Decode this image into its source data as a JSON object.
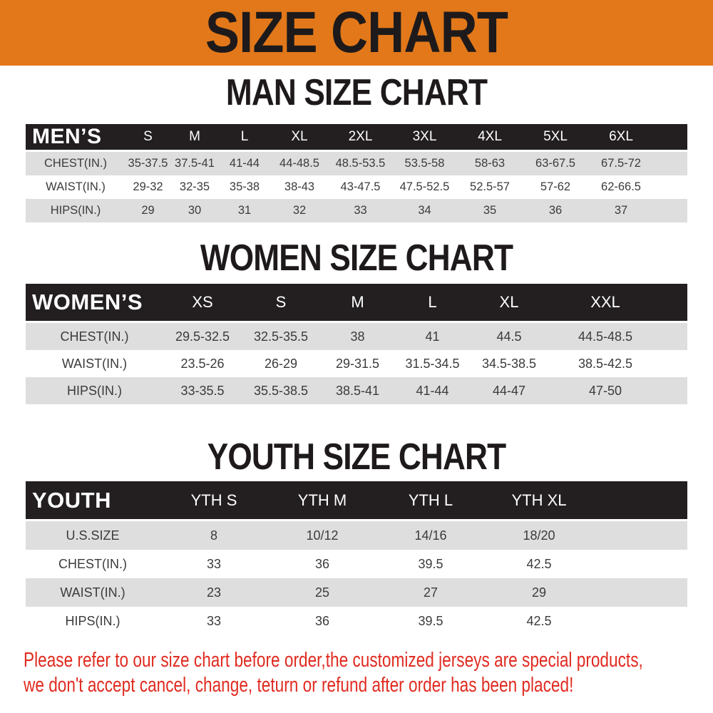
{
  "banner": {
    "title": "SIZE CHART"
  },
  "colors": {
    "banner_orange": "#e2781a",
    "header_black": "#231f20",
    "row_gray": "#dedede",
    "text_dark": "#3b3b3b",
    "heading_black": "#1e1a1b",
    "disclaimer_red": "#e02b20"
  },
  "tables": {
    "men": {
      "heading": "MAN SIZE CHART",
      "header": [
        "MEN’S",
        "S",
        "M",
        "L",
        "XL",
        "2XL",
        "3XL",
        "4XL",
        "5XL",
        "6XL"
      ],
      "rows": [
        [
          "CHEST(IN.)",
          "35-37.5",
          "37.5-41",
          "41-44",
          "44-48.5",
          "48.5-53.5",
          "53.5-58",
          "58-63",
          "63-67.5",
          "67.5-72"
        ],
        [
          "WAIST(IN.)",
          "29-32",
          "32-35",
          "35-38",
          "38-43",
          "43-47.5",
          "47.5-52.5",
          "52.5-57",
          "57-62",
          "62-66.5"
        ],
        [
          "HIPS(IN.)",
          "29",
          "30",
          "31",
          "32",
          "33",
          "34",
          "35",
          "36",
          "37"
        ]
      ]
    },
    "women": {
      "heading": "WOMEN SIZE CHART",
      "header": [
        "WOMEN’S",
        "XS",
        "S",
        "M",
        "L",
        "XL",
        "XXL"
      ],
      "rows": [
        [
          "CHEST(IN.)",
          "29.5-32.5",
          "32.5-35.5",
          "38",
          "41",
          "44.5",
          "44.5-48.5"
        ],
        [
          "WAIST(IN.)",
          "23.5-26",
          "26-29",
          "29-31.5",
          "31.5-34.5",
          "34.5-38.5",
          "38.5-42.5"
        ],
        [
          "HIPS(IN.)",
          "33-35.5",
          "35.5-38.5",
          "38.5-41",
          "41-44",
          "44-47",
          "47-50"
        ]
      ]
    },
    "youth": {
      "heading": "YOUTH SIZE CHART",
      "header": [
        "YOUTH",
        "YTH S",
        "YTH M",
        "YTH L",
        "YTH XL"
      ],
      "rows": [
        [
          "U.S.SIZE",
          "8",
          "10/12",
          "14/16",
          "18/20"
        ],
        [
          "CHEST(IN.)",
          "33",
          "36",
          "39.5",
          "42.5"
        ],
        [
          "WAIST(IN.)",
          "23",
          "25",
          "27",
          "29"
        ],
        [
          "HIPS(IN.)",
          "33",
          "36",
          "39.5",
          "42.5"
        ]
      ]
    }
  },
  "disclaimer": {
    "line1": "Please refer to our size chart before order,the customized jerseys are special products,",
    "line2": "we don't accept cancel, change, teturn or refund after order has been placed!"
  }
}
